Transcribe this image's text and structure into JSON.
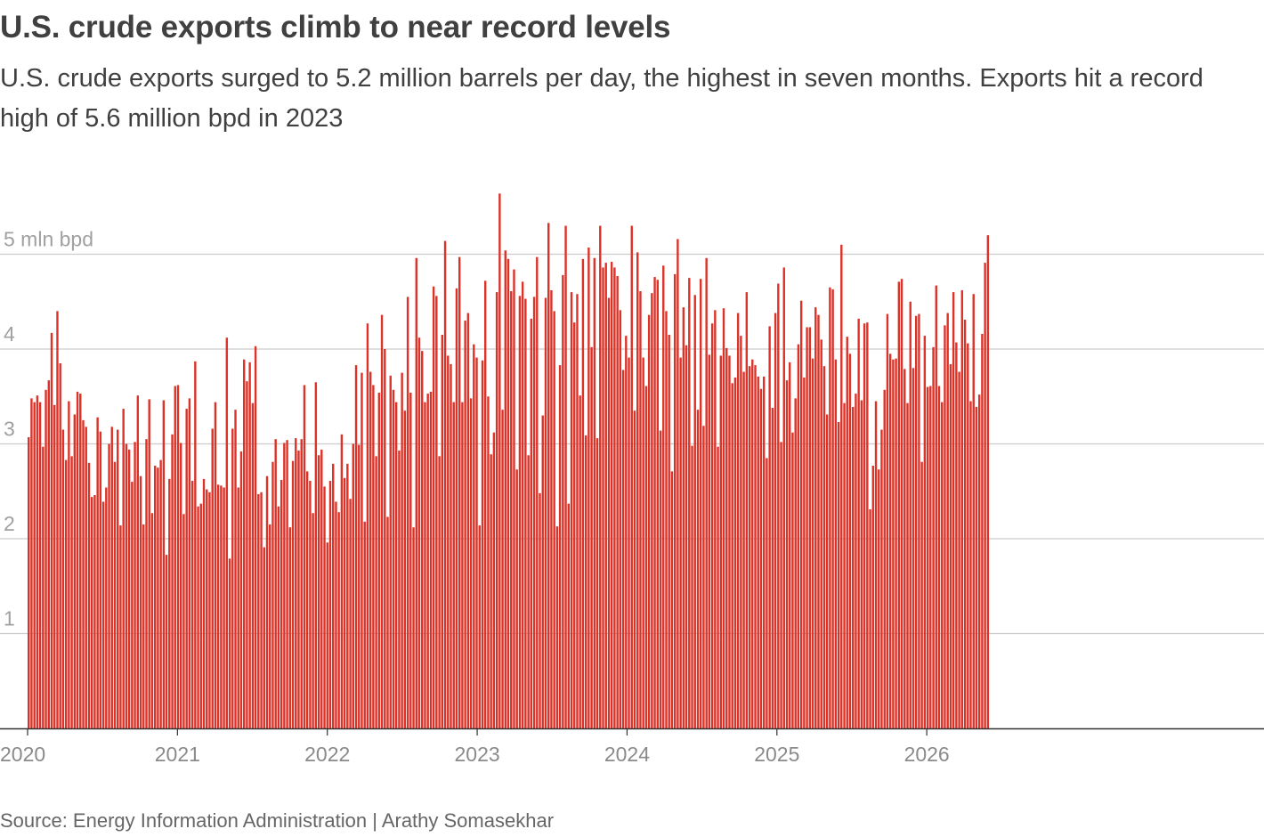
{
  "title": "U.S. crude exports climb to near record levels",
  "subtitle": "U.S. crude exports surged to 5.2 million barrels per day, the highest in seven months. Exports hit a record high of 5.6 million bpd in 2023",
  "source": "Source: Energy Information Administration | Arathy Somasekhar",
  "colors": {
    "bar": "#dc3228",
    "grid": "#cccccc",
    "axis": "#333333"
  },
  "chart_data": {
    "type": "bar",
    "unit": "mln bpd",
    "ylim": [
      0,
      5.5
    ],
    "grid": true,
    "y_ticks": [
      {
        "value": 1,
        "label": "1"
      },
      {
        "value": 2,
        "label": "2"
      },
      {
        "value": 3,
        "label": "3"
      },
      {
        "value": 4,
        "label": "4"
      },
      {
        "value": 5,
        "label": "5 mln bpd"
      }
    ],
    "x_ticks": [
      "2020",
      "2021",
      "2022",
      "2023",
      "2024",
      "2025",
      "2026"
    ],
    "start_week": "2020-01-03",
    "values": [
      3.07,
      3.48,
      3.44,
      3.51,
      3.44,
      2.97,
      3.57,
      3.67,
      4.17,
      3.41,
      4.4,
      3.85,
      3.15,
      2.83,
      3.45,
      2.87,
      3.31,
      3.55,
      3.53,
      3.25,
      3.18,
      2.8,
      2.44,
      2.46,
      3.28,
      3.13,
      2.39,
      2.54,
      3.0,
      3.18,
      2.81,
      3.15,
      2.14,
      3.37,
      3.0,
      2.94,
      2.6,
      3.02,
      3.51,
      2.66,
      2.15,
      3.05,
      3.47,
      2.27,
      2.77,
      2.75,
      2.83,
      3.46,
      1.83,
      2.63,
      3.1,
      3.61,
      3.62,
      3.01,
      2.26,
      3.37,
      3.48,
      2.61,
      3.87,
      2.34,
      2.37,
      2.63,
      2.52,
      2.49,
      3.16,
      3.44,
      2.57,
      2.56,
      2.54,
      4.12,
      1.79,
      3.16,
      3.36,
      2.54,
      2.92,
      3.89,
      3.66,
      3.86,
      3.43,
      4.03,
      2.47,
      2.49,
      1.91,
      2.66,
      2.15,
      2.81,
      3.05,
      2.34,
      2.62,
      3.01,
      3.04,
      2.12,
      2.82,
      3.06,
      2.93,
      3.05,
      3.62,
      2.71,
      2.61,
      2.27,
      3.65,
      2.88,
      2.94,
      2.55,
      1.96,
      2.61,
      2.79,
      2.39,
      2.28,
      3.1,
      2.64,
      2.79,
      2.42,
      3.0,
      3.83,
      2.99,
      3.75,
      2.18,
      4.27,
      3.76,
      3.62,
      2.87,
      3.54,
      4.36,
      4.0,
      2.23,
      3.72,
      3.57,
      3.44,
      2.93,
      3.75,
      3.35,
      4.55,
      3.54,
      2.12,
      4.96,
      4.12,
      3.98,
      3.44,
      3.53,
      3.55,
      4.66,
      4.56,
      2.87,
      4.15,
      5.14,
      3.93,
      3.84,
      3.44,
      4.64,
      4.97,
      3.44,
      4.3,
      4.38,
      3.48,
      4.05,
      3.91,
      2.14,
      3.88,
      4.72,
      3.5,
      2.89,
      3.12,
      4.6,
      5.64,
      3.36,
      5.04,
      4.95,
      4.61,
      4.84,
      2.73,
      4.56,
      4.71,
      4.53,
      2.88,
      4.32,
      4.55,
      4.97,
      2.48,
      3.3,
      4.54,
      5.33,
      4.62,
      4.4,
      2.13,
      3.83,
      4.78,
      5.3,
      2.37,
      4.6,
      4.28,
      4.58,
      3.51,
      4.95,
      3.09,
      5.07,
      4.02,
      4.96,
      3.06,
      5.3,
      4.86,
      4.91,
      4.54,
      4.92,
      4.86,
      4.77,
      4.41,
      3.78,
      4.14,
      3.91,
      5.3,
      3.35,
      5.02,
      4.61,
      3.91,
      3.61,
      4.36,
      4.59,
      4.76,
      4.73,
      3.14,
      4.88,
      4.4,
      4.15,
      2.71,
      4.79,
      5.16,
      3.91,
      4.44,
      4.04,
      4.75,
      2.98,
      4.57,
      3.36,
      4.74,
      3.19,
      4.96,
      3.94,
      4.27,
      4.41,
      2.97,
      3.93,
      4.43,
      4.01,
      3.93,
      3.64,
      3.7,
      4.38,
      4.14,
      3.76,
      4.6,
      3.82,
      3.89,
      3.83,
      3.71,
      3.58,
      3.71,
      2.85,
      4.24,
      3.38,
      4.38,
      4.69,
      3.02,
      4.86,
      3.67,
      3.86,
      3.12,
      3.48,
      4.05,
      4.51,
      3.7,
      4.23,
      4.23,
      3.9,
      4.44,
      4.36,
      4.1,
      3.82,
      3.31,
      4.65,
      4.63,
      3.89,
      3.23,
      5.1,
      3.43,
      4.13,
      3.95,
      3.39,
      3.53,
      4.32,
      3.46,
      4.27,
      4.28,
      2.31,
      2.77,
      3.45,
      2.73,
      3.15,
      3.57,
      4.37,
      3.95,
      3.89,
      3.9,
      4.71,
      4.74,
      3.79,
      3.43,
      4.5,
      3.8,
      4.35,
      4.37,
      2.81,
      4.14,
      3.6,
      3.61,
      4.02,
      4.67,
      3.61,
      3.44,
      4.25,
      4.38,
      3.84,
      4.6,
      4.07,
      3.76,
      4.62,
      4.31,
      4.06,
      3.45,
      4.58,
      3.39,
      3.52,
      4.16,
      4.91,
      5.2
    ]
  }
}
